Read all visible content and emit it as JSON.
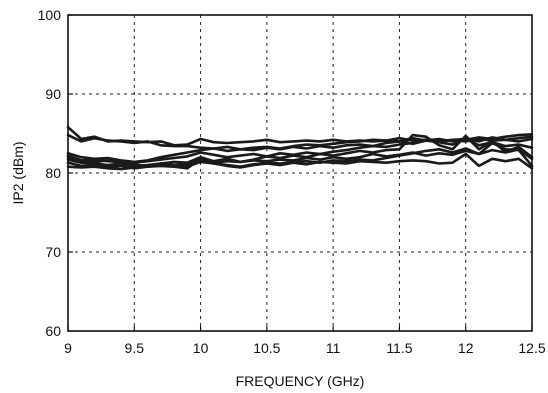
{
  "chart_data": {
    "type": "line",
    "title": "",
    "xlabel": "FREQUENCY (GHz)",
    "ylabel": "IP2  (dBm)",
    "xlim": [
      9,
      12.5
    ],
    "ylim": [
      60,
      100
    ],
    "xticks": [
      9,
      9.5,
      10,
      10.5,
      11,
      11.5,
      12,
      12.5
    ],
    "yticks": [
      60,
      70,
      80,
      90,
      100
    ],
    "xtick_labels": [
      "9",
      "9.5",
      "10",
      "10.5",
      "11",
      "11.5",
      "12",
      "12.5"
    ],
    "ytick_labels": [
      "60",
      "70",
      "80",
      "90",
      "100"
    ],
    "grid": true,
    "line_color": "#1a1a1a",
    "x": [
      9.0,
      9.1,
      9.2,
      9.3,
      9.4,
      9.5,
      9.6,
      9.7,
      9.8,
      9.9,
      10.0,
      10.1,
      10.2,
      10.3,
      10.4,
      10.5,
      10.6,
      10.7,
      10.8,
      10.9,
      11.0,
      11.1,
      11.2,
      11.3,
      11.4,
      11.5,
      11.6,
      11.7,
      11.8,
      11.9,
      12.0,
      12.1,
      12.2,
      12.3,
      12.4,
      12.5
    ],
    "series": [
      {
        "values": [
          85.8,
          84.3,
          84.6,
          84.0,
          84.1,
          84.0,
          83.9,
          84.0,
          83.5,
          83.6,
          84.3,
          83.9,
          83.8,
          83.9,
          84.0,
          84.2,
          83.9,
          84.0,
          84.1,
          84.0,
          84.2,
          84.0,
          84.1,
          84.0,
          84.1,
          84.4,
          84.1,
          84.2,
          84.0,
          84.2,
          84.3,
          84.0,
          84.5,
          84.2,
          84.4,
          84.6
        ]
      },
      {
        "values": [
          84.8,
          84.0,
          84.4,
          84.1,
          84.0,
          83.8,
          84.0,
          83.5,
          83.4,
          83.4,
          83.2,
          83.1,
          83.3,
          83.0,
          83.2,
          83.3,
          83.1,
          83.4,
          83.6,
          83.5,
          83.7,
          83.9,
          84.0,
          84.2,
          84.1,
          84.0,
          84.4,
          84.1,
          84.3,
          84.0,
          84.2,
          84.5,
          84.3,
          84.6,
          84.8,
          84.9
        ]
      },
      {
        "values": [
          82.5,
          82.0,
          81.8,
          81.9,
          81.6,
          81.4,
          81.6,
          82.0,
          82.3,
          82.6,
          82.9,
          83.1,
          82.8,
          83.0,
          82.9,
          83.2,
          83.0,
          83.3,
          83.1,
          83.4,
          83.2,
          83.5,
          83.6,
          83.4,
          83.8,
          84.0,
          83.7,
          84.1,
          83.9,
          84.2,
          84.0,
          84.3,
          84.1,
          84.2,
          84.0,
          84.3
        ]
      },
      {
        "values": [
          82.2,
          81.6,
          81.7,
          81.5,
          81.4,
          81.3,
          81.5,
          81.7,
          81.9,
          82.1,
          82.6,
          82.3,
          82.0,
          82.2,
          82.4,
          82.1,
          82.5,
          82.3,
          82.6,
          82.4,
          82.7,
          82.9,
          83.2,
          83.4,
          83.3,
          83.6,
          83.8,
          84.2,
          83.9,
          83.6,
          84.3,
          83.5,
          83.9,
          83.4,
          83.6,
          83.2
        ]
      },
      {
        "values": [
          81.7,
          81.3,
          81.2,
          81.0,
          81.2,
          80.9,
          81.0,
          81.2,
          81.4,
          81.3,
          82.0,
          81.5,
          81.8,
          81.4,
          81.7,
          82.1,
          81.9,
          82.2,
          82.0,
          82.4,
          82.2,
          82.5,
          82.8,
          82.6,
          82.9,
          83.0,
          84.8,
          84.6,
          83.5,
          83.0,
          84.7,
          83.0,
          84.0,
          82.7,
          83.3,
          82.0
        ]
      },
      {
        "values": [
          81.3,
          80.9,
          81.0,
          80.8,
          80.9,
          80.6,
          80.8,
          81.0,
          80.9,
          80.8,
          81.4,
          81.2,
          81.0,
          80.8,
          81.1,
          81.3,
          81.2,
          81.4,
          81.5,
          81.3,
          81.6,
          81.5,
          81.7,
          81.6,
          81.9,
          82.2,
          82.5,
          82.8,
          83.0,
          82.6,
          83.1,
          82.4,
          82.9,
          82.6,
          83.0,
          81.8
        ]
      },
      {
        "values": [
          80.8,
          80.7,
          80.8,
          80.6,
          80.5,
          80.7,
          80.9,
          81.2,
          81.0,
          81.1,
          81.6,
          81.3,
          81.5,
          81.4,
          81.6,
          81.5,
          81.7,
          81.6,
          81.9,
          81.7,
          82.0,
          81.8,
          82.0,
          82.4,
          82.1,
          82.3,
          82.6,
          82.2,
          82.5,
          82.3,
          82.8,
          82.4,
          83.8,
          83.0,
          82.9,
          80.9
        ]
      },
      {
        "values": [
          82.0,
          81.5,
          81.4,
          81.6,
          81.3,
          81.1,
          80.8,
          80.9,
          80.8,
          80.6,
          81.8,
          81.2,
          80.9,
          80.7,
          81.0,
          81.2,
          81.0,
          81.3,
          81.1,
          81.4,
          81.3,
          81.2,
          81.5,
          81.4,
          81.3,
          81.5,
          81.6,
          81.5,
          81.2,
          81.3,
          82.4,
          80.9,
          81.8,
          81.5,
          81.8,
          80.6
        ]
      }
    ]
  }
}
